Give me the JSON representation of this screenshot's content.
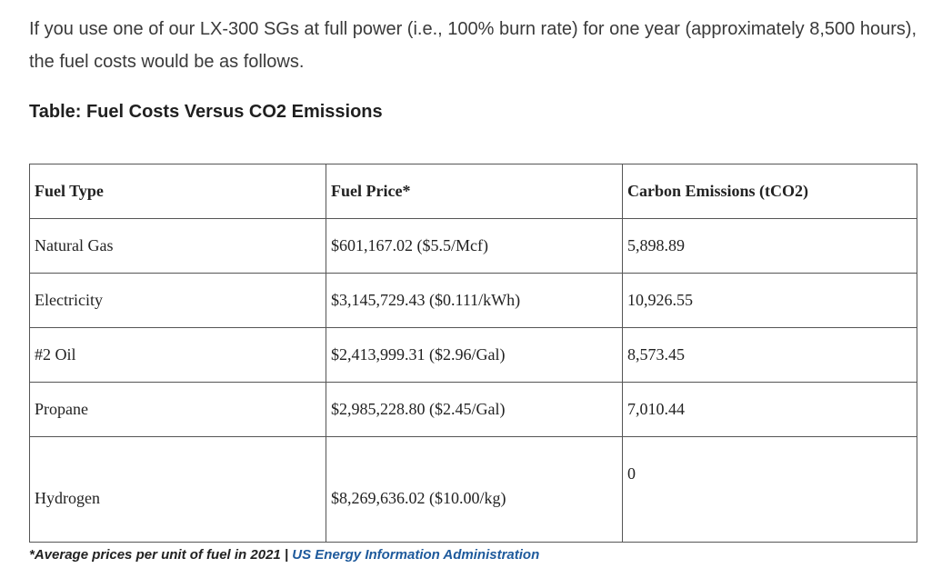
{
  "intro": "If you use one of our LX-300 SGs at full power (i.e., 100% burn rate) for one year (approximately 8,500 hours), the fuel costs would be as follows.",
  "table_title": "Table: Fuel Costs Versus CO2 Emissions",
  "table": {
    "headers": [
      "Fuel Type",
      "Fuel Price*",
      "Carbon Emissions (tCO2)"
    ],
    "rows": [
      {
        "fuel_type": "Natural Gas",
        "fuel_price": "$601,167.02 ($5.5/Mcf)",
        "emissions": "5,898.89"
      },
      {
        "fuel_type": "Electricity",
        "fuel_price": "$3,145,729.43 ($0.111/kWh)",
        "emissions": "10,926.55"
      },
      {
        "fuel_type": "#2 Oil",
        "fuel_price": "$2,413,999.31 ($2.96/Gal)",
        "emissions": "8,573.45"
      },
      {
        "fuel_type": "Propane",
        "fuel_price": "$2,985,228.80 ($2.45/Gal)",
        "emissions": "7,010.44"
      },
      {
        "fuel_type": "Hydrogen",
        "fuel_price": "$8,269,636.02 ($10.00/kg)",
        "emissions": "0"
      }
    ]
  },
  "footnote": {
    "text": "*Average prices per unit of fuel in 2021 | ",
    "link_text": "US Energy Information Administration",
    "link_color": "#1e5a9c"
  }
}
